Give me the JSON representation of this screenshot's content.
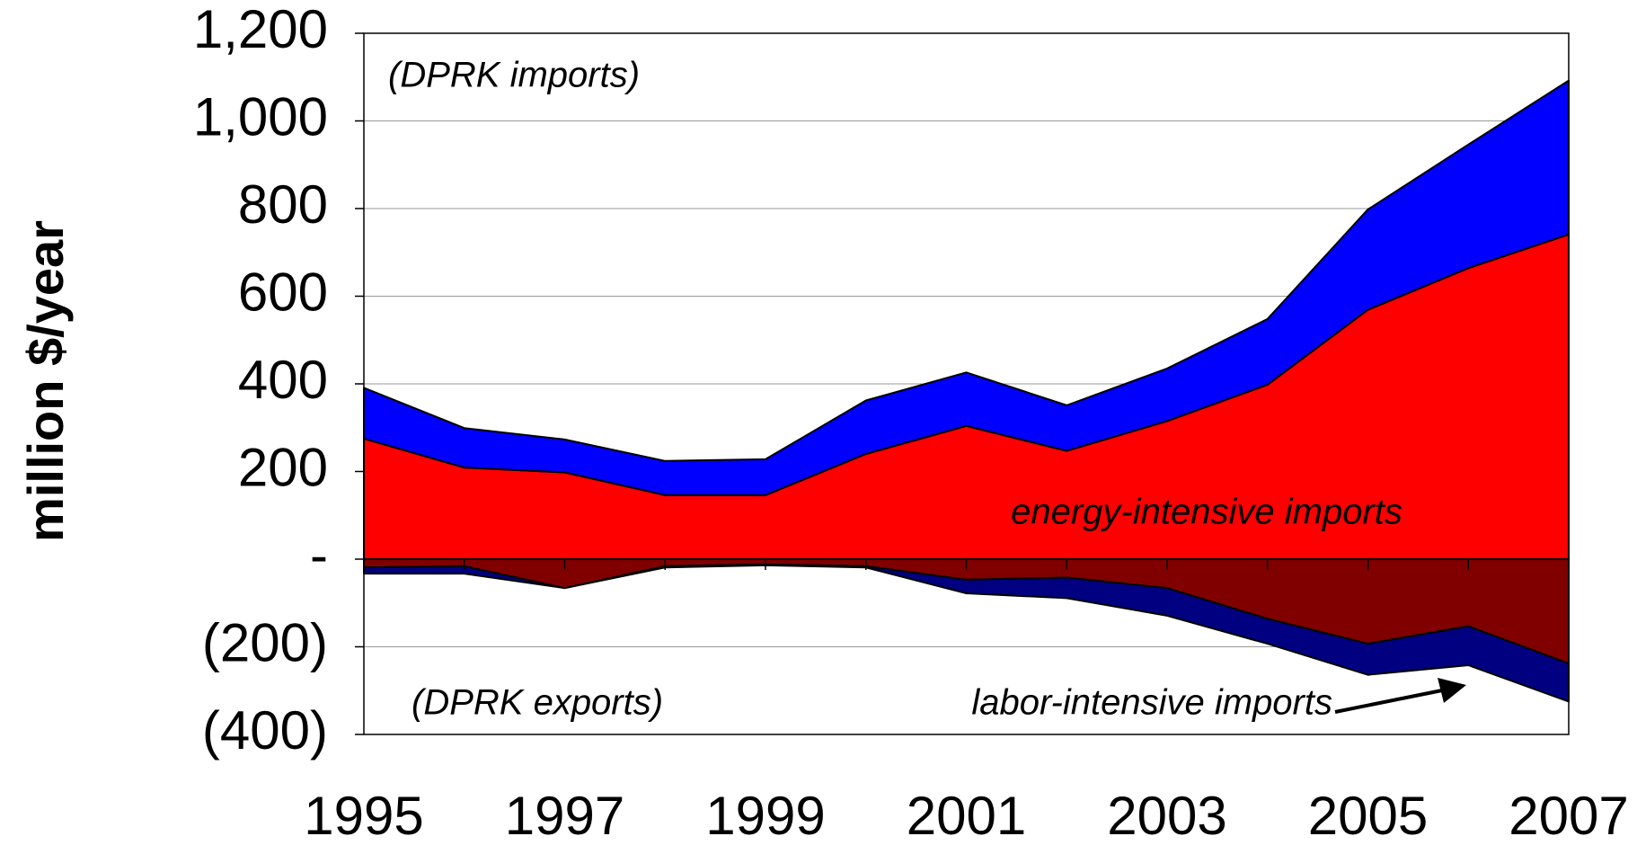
{
  "chart_data": {
    "type": "area",
    "ylabel": "million $/year",
    "x": [
      1995,
      1996,
      1997,
      1998,
      1999,
      2000,
      2001,
      2002,
      2003,
      2004,
      2005,
      2006,
      2007
    ],
    "xlim": [
      1995,
      2007
    ],
    "xticks": [
      1995,
      1997,
      1999,
      2001,
      2003,
      2005,
      2007
    ],
    "ylim": [
      -400,
      1200
    ],
    "yticks": [
      {
        "value": -400,
        "label": "(400)"
      },
      {
        "value": -200,
        "label": "(200)"
      },
      {
        "value": 0,
        "label": "-"
      },
      200,
      400,
      600,
      800,
      {
        "value": 1000,
        "label": "1,000"
      },
      {
        "value": 1200,
        "label": "1,200"
      }
    ],
    "grid": true,
    "stacked": true,
    "series": [
      {
        "color": "#ff0000",
        "values": [
          275,
          209,
          198,
          146,
          146,
          240,
          304,
          247,
          315,
          398,
          569,
          664,
          741
        ]
      },
      {
        "color": "#0000ff",
        "values": [
          116,
          90,
          75,
          78,
          82,
          122,
          122,
          104,
          120,
          150,
          229,
          282,
          351
        ]
      },
      {
        "color": "#800000",
        "values": [
          -19,
          -16,
          -66,
          -16,
          -12,
          -16,
          -47,
          -42,
          -66,
          -136,
          -193,
          -153,
          -238
        ]
      },
      {
        "color": "#000080",
        "values": [
          -14,
          -17,
          0,
          -3,
          -2,
          -3,
          -31,
          -47,
          -63,
          -57,
          -71,
          -89,
          -87
        ]
      }
    ],
    "annotations": [
      "(DPRK imports)",
      "energy-intensive imports",
      "(DPRK exports)",
      "labor-intensive imports"
    ]
  }
}
